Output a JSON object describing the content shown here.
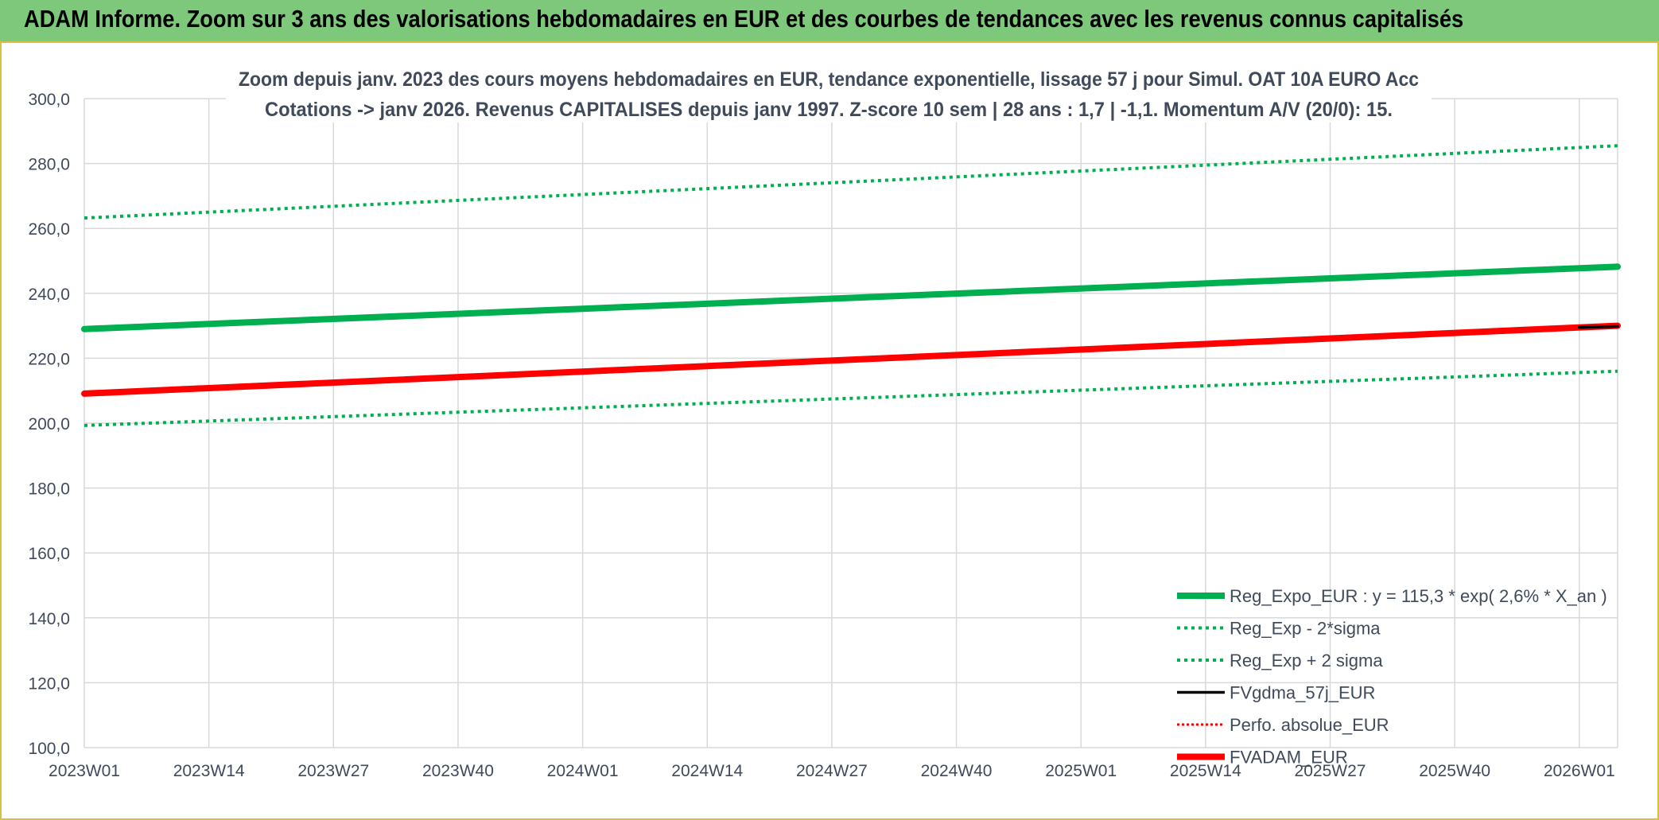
{
  "header": {
    "title": "ADAM Informe. Zoom sur 3 ans des valorisations hebdomadaires en EUR et des courbes de tendances avec les revenus connus capitalisés"
  },
  "colors": {
    "header_bg": "#7dc87a",
    "frame_border": "#d9c23a",
    "green": "#00b050",
    "red": "#ff0000",
    "black": "#000000",
    "grid": "#d9d9d9",
    "text": "#404a5a"
  },
  "chart_data": {
    "type": "line",
    "title": "Zoom depuis janv. 2023 des cours moyens hebdomadaires en EUR, tendance exponentielle, lissage 57 j pour Simul. OAT 10A EURO Acc",
    "subtitle": "Cotations -> janv 2026. Revenus CAPITALISES depuis janv 1997. Z-score 10 sem | 28 ans : 1,7 | -1,1. Momentum A/V (20/0): 15.",
    "xlabel": "",
    "ylabel": "",
    "ylim": [
      100,
      300
    ],
    "yticks": [
      "100,0",
      "120,0",
      "140,0",
      "160,0",
      "180,0",
      "200,0",
      "220,0",
      "240,0",
      "260,0",
      "280,0",
      "300,0"
    ],
    "xlim": [
      0,
      160
    ],
    "xticks": [
      {
        "label": "2023W01",
        "x": 0
      },
      {
        "label": "2023W14",
        "x": 13
      },
      {
        "label": "2023W27",
        "x": 26
      },
      {
        "label": "2023W40",
        "x": 39
      },
      {
        "label": "2024W01",
        "x": 52
      },
      {
        "label": "2024W14",
        "x": 65
      },
      {
        "label": "2024W27",
        "x": 78
      },
      {
        "label": "2024W40",
        "x": 91
      },
      {
        "label": "2025W01",
        "x": 104
      },
      {
        "label": "2025W14",
        "x": 117
      },
      {
        "label": "2025W27",
        "x": 130
      },
      {
        "label": "2025W40",
        "x": 143
      },
      {
        "label": "2026W01",
        "x": 156
      }
    ],
    "grid": true,
    "legend_position": "bottom-right",
    "series": [
      {
        "name": "Reg_Expo_EUR : y = 115,3 * exp( 2,6% *  X_an )",
        "style": "solid-thick",
        "color": "#00b050",
        "x": [
          0,
          160
        ],
        "y": [
          229.0,
          248.2
        ]
      },
      {
        "name": "Reg_Exp - 2*sigma",
        "style": "dotted",
        "color": "#00b050",
        "x": [
          0,
          160
        ],
        "y": [
          199.3,
          216.0
        ]
      },
      {
        "name": "Reg_Exp + 2 sigma",
        "style": "dotted",
        "color": "#00b050",
        "x": [
          0,
          160
        ],
        "y": [
          263.2,
          285.5
        ]
      },
      {
        "name": "FVgdma_57j_EUR",
        "style": "solid",
        "color": "#000000",
        "x": [
          156,
          160
        ],
        "y": [
          229.5,
          229.8
        ]
      },
      {
        "name": "Perfo. absolue_EUR",
        "style": "dotted-thin",
        "color": "#ff0000",
        "x": [],
        "y": []
      },
      {
        "name": "FVADAM_EUR",
        "style": "solid-thick",
        "color": "#ff0000",
        "x": [
          0,
          160
        ],
        "y": [
          209.1,
          230.0
        ]
      }
    ]
  }
}
